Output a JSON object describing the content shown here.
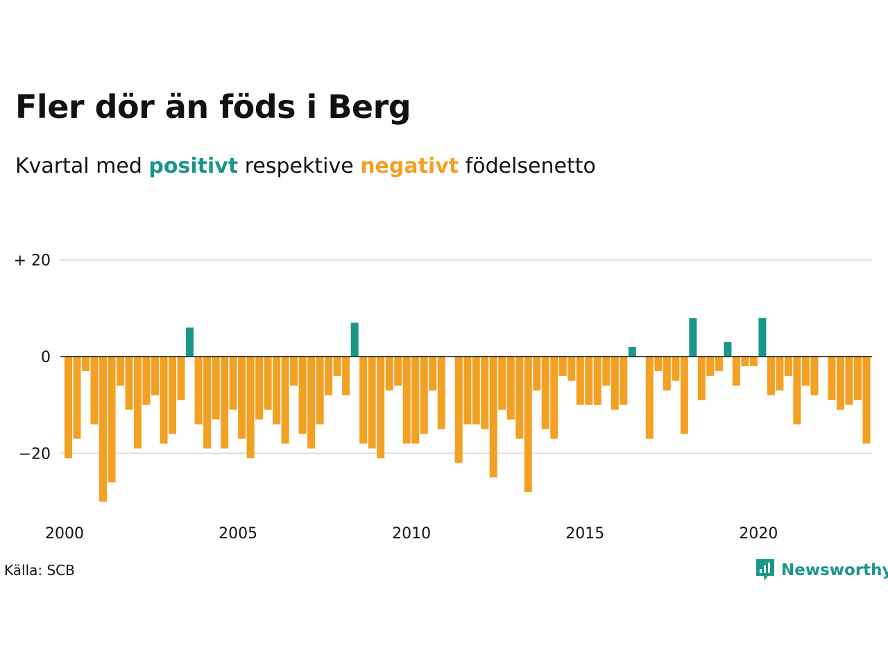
{
  "header": {
    "title": "Fler dör än föds i Berg",
    "subtitle_before": "Kvartal med ",
    "subtitle_positive": "positivt",
    "subtitle_middle": " respektive ",
    "subtitle_negative": "negativt",
    "subtitle_after": " födelsenetto"
  },
  "colors": {
    "positive": "#1a968a",
    "negative": "#f4a023",
    "grid": "#dddddd",
    "zero_line": "#111111"
  },
  "chart_data": {
    "type": "bar",
    "title": "Fler dör än föds i Berg",
    "subtitle": "Kvartal med positivt respektive negativt födelsenetto",
    "xlabel": "",
    "ylabel": "",
    "x_start": "2000 Q1",
    "x_ticks": [
      {
        "year": 2000,
        "label": "2000"
      },
      {
        "year": 2005,
        "label": "2005"
      },
      {
        "year": 2010,
        "label": "2010"
      },
      {
        "year": 2015,
        "label": "2015"
      },
      {
        "year": 2020,
        "label": "2020"
      }
    ],
    "y_ticks": [
      {
        "value": 20,
        "label": "+ 20"
      },
      {
        "value": 0,
        "label": "0"
      },
      {
        "value": -20,
        "label": "−20"
      }
    ],
    "ylim": [
      -30,
      20
    ],
    "grid": true,
    "values": [
      -21,
      -17,
      -3,
      -14,
      -30,
      -26,
      -6,
      -11,
      -19,
      -10,
      -8,
      -18,
      -16,
      -9,
      6,
      -14,
      -19,
      -13,
      -19,
      -11,
      -17,
      -21,
      -13,
      -11,
      -14,
      -18,
      -6,
      -16,
      -19,
      -14,
      -8,
      -4,
      -8,
      7,
      -18,
      -19,
      -21,
      -7,
      -6,
      -18,
      -18,
      -16,
      -7,
      -15,
      0,
      -22,
      -14,
      -14,
      -15,
      -25,
      -11,
      -13,
      -17,
      -28,
      -7,
      -15,
      -17,
      -4,
      -5,
      -10,
      -10,
      -10,
      -6,
      -11,
      -10,
      2,
      0,
      -17,
      -3,
      -7,
      -5,
      -16,
      8,
      -9,
      -4,
      -3,
      3,
      -6,
      -2,
      -2,
      8,
      -8,
      -7,
      -4,
      -14,
      -6,
      -8,
      0,
      -9,
      -11,
      -10,
      -9,
      -18
    ]
  },
  "footer": {
    "source": "Källa: SCB",
    "brand": "Newsworthy",
    "brand_icon": "newsworthy-logo-icon"
  }
}
